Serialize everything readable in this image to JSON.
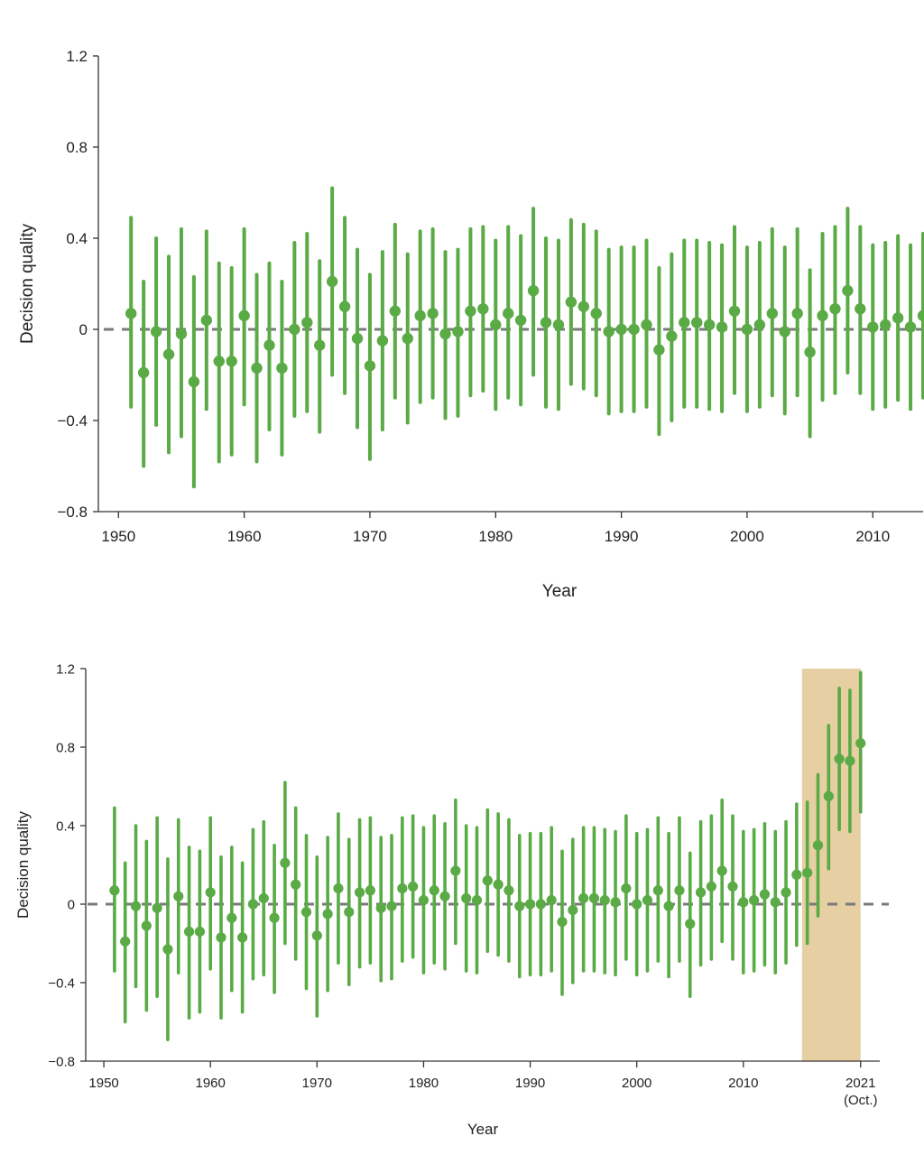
{
  "colors": {
    "series": "#5aaa46",
    "zero_line": "#7a7a7a",
    "highlight": "#e6cfa3",
    "axis": "#333333"
  },
  "chart_data": [
    {
      "type": "scatter",
      "ylabel": "Decision quality",
      "xlabel": "Year",
      "x_ticks": [
        1950,
        1960,
        1970,
        1980,
        1990,
        2000,
        2010
      ],
      "x_tick_labels": [
        "1950",
        "1960",
        "1970",
        "1980",
        "1990",
        "2000",
        "2010"
      ],
      "y_ticks": [
        1.2,
        0.8,
        0.4,
        0,
        -0.4,
        -0.8
      ],
      "y_tick_labels": [
        "1.2",
        "0.8",
        "0.4",
        "0",
        "−0.4",
        "−0.8"
      ],
      "ylim": [
        -0.8,
        1.2
      ],
      "xlim": [
        1948.4,
        2014
      ],
      "zero_line": 0,
      "series": [
        {
          "name": "Decision quality",
          "x": [
            1951,
            1952,
            1953,
            1954,
            1955,
            1956,
            1957,
            1958,
            1959,
            1960,
            1961,
            1962,
            1963,
            1964,
            1965,
            1966,
            1967,
            1968,
            1969,
            1970,
            1971,
            1972,
            1973,
            1974,
            1975,
            1976,
            1977,
            1978,
            1979,
            1980,
            1981,
            1982,
            1983,
            1984,
            1985,
            1986,
            1987,
            1988,
            1989,
            1990,
            1991,
            1992,
            1993,
            1994,
            1995,
            1996,
            1997,
            1998,
            1999,
            2000,
            2001,
            2002,
            2003,
            2004,
            2005,
            2006,
            2007,
            2008,
            2009,
            2010,
            2011,
            2012,
            2013,
            2014
          ],
          "values": [
            0.07,
            -0.19,
            -0.01,
            -0.11,
            -0.02,
            -0.23,
            0.04,
            -0.14,
            -0.14,
            0.06,
            -0.17,
            -0.07,
            -0.17,
            0.0,
            0.03,
            -0.07,
            0.21,
            0.1,
            -0.04,
            -0.16,
            -0.05,
            0.08,
            -0.04,
            0.06,
            0.07,
            -0.02,
            -0.01,
            0.08,
            0.09,
            0.02,
            0.07,
            0.04,
            0.17,
            0.03,
            0.02,
            0.12,
            0.1,
            0.07,
            -0.01,
            0.0,
            0.0,
            0.02,
            -0.09,
            -0.03,
            0.03,
            0.03,
            0.02,
            0.01,
            0.08,
            0.0,
            0.02,
            0.07,
            -0.01,
            0.07,
            -0.1,
            0.06,
            0.09,
            0.17,
            0.09,
            0.01,
            0.02,
            0.05,
            0.01,
            0.06
          ],
          "lower": [
            -0.34,
            -0.6,
            -0.42,
            -0.54,
            -0.47,
            -0.69,
            -0.35,
            -0.58,
            -0.55,
            -0.33,
            -0.58,
            -0.44,
            -0.55,
            -0.38,
            -0.36,
            -0.45,
            -0.2,
            -0.28,
            -0.43,
            -0.57,
            -0.44,
            -0.3,
            -0.41,
            -0.32,
            -0.3,
            -0.39,
            -0.38,
            -0.29,
            -0.27,
            -0.35,
            -0.3,
            -0.33,
            -0.2,
            -0.34,
            -0.35,
            -0.24,
            -0.26,
            -0.29,
            -0.37,
            -0.36,
            -0.36,
            -0.34,
            -0.46,
            -0.4,
            -0.34,
            -0.34,
            -0.35,
            -0.36,
            -0.28,
            -0.36,
            -0.34,
            -0.29,
            -0.37,
            -0.29,
            -0.47,
            -0.31,
            -0.28,
            -0.19,
            -0.28,
            -0.35,
            -0.34,
            -0.31,
            -0.35,
            -0.3
          ],
          "upper": [
            0.49,
            0.21,
            0.4,
            0.32,
            0.44,
            0.23,
            0.43,
            0.29,
            0.27,
            0.44,
            0.24,
            0.29,
            0.21,
            0.38,
            0.42,
            0.3,
            0.62,
            0.49,
            0.35,
            0.24,
            0.34,
            0.46,
            0.33,
            0.43,
            0.44,
            0.34,
            0.35,
            0.44,
            0.45,
            0.39,
            0.45,
            0.41,
            0.53,
            0.4,
            0.39,
            0.48,
            0.46,
            0.43,
            0.35,
            0.36,
            0.36,
            0.39,
            0.27,
            0.33,
            0.39,
            0.39,
            0.38,
            0.37,
            0.45,
            0.36,
            0.38,
            0.44,
            0.36,
            0.44,
            0.26,
            0.42,
            0.45,
            0.53,
            0.45,
            0.37,
            0.38,
            0.41,
            0.37,
            0.42
          ]
        }
      ]
    },
    {
      "type": "scatter",
      "ylabel": "Decision quality",
      "xlabel": "Year",
      "x_ticks": [
        1950,
        1960,
        1970,
        1980,
        1990,
        2000,
        2010,
        2021
      ],
      "x_tick_labels": [
        "1950",
        "1960",
        "1970",
        "1980",
        "1990",
        "2000",
        "2010",
        "2021"
      ],
      "x_tick_sublabel": "(Oct.)",
      "y_ticks": [
        1.2,
        0.8,
        0.4,
        0,
        -0.4,
        -0.8
      ],
      "y_tick_labels": [
        "1.2",
        "0.8",
        "0.4",
        "0",
        "−0.4",
        "−0.8"
      ],
      "ylim": [
        -0.8,
        1.2
      ],
      "xlim": [
        1948.3,
        2022.8
      ],
      "zero_line": 0,
      "highlight_range": [
        2015.5,
        2021
      ],
      "series": [
        {
          "name": "Decision quality",
          "x": [
            1951,
            1952,
            1953,
            1954,
            1955,
            1956,
            1957,
            1958,
            1959,
            1960,
            1961,
            1962,
            1963,
            1964,
            1965,
            1966,
            1967,
            1968,
            1969,
            1970,
            1971,
            1972,
            1973,
            1974,
            1975,
            1976,
            1977,
            1978,
            1979,
            1980,
            1981,
            1982,
            1983,
            1984,
            1985,
            1986,
            1987,
            1988,
            1989,
            1990,
            1991,
            1992,
            1993,
            1994,
            1995,
            1996,
            1997,
            1998,
            1999,
            2000,
            2001,
            2002,
            2003,
            2004,
            2005,
            2006,
            2007,
            2008,
            2009,
            2010,
            2011,
            2012,
            2013,
            2014,
            2015,
            2016,
            2017,
            2018,
            2019,
            2020,
            2021
          ],
          "values": [
            0.07,
            -0.19,
            -0.01,
            -0.11,
            -0.02,
            -0.23,
            0.04,
            -0.14,
            -0.14,
            0.06,
            -0.17,
            -0.07,
            -0.17,
            0.0,
            0.03,
            -0.07,
            0.21,
            0.1,
            -0.04,
            -0.16,
            -0.05,
            0.08,
            -0.04,
            0.06,
            0.07,
            -0.02,
            -0.01,
            0.08,
            0.09,
            0.02,
            0.07,
            0.04,
            0.17,
            0.03,
            0.02,
            0.12,
            0.1,
            0.07,
            -0.01,
            0.0,
            0.0,
            0.02,
            -0.09,
            -0.03,
            0.03,
            0.03,
            0.02,
            0.01,
            0.08,
            0.0,
            0.02,
            0.07,
            -0.01,
            0.07,
            -0.1,
            0.06,
            0.09,
            0.17,
            0.09,
            0.01,
            0.02,
            0.05,
            0.01,
            0.06,
            0.15,
            0.16,
            0.3,
            0.55,
            0.74,
            0.73,
            0.82
          ],
          "lower": [
            -0.34,
            -0.6,
            -0.42,
            -0.54,
            -0.47,
            -0.69,
            -0.35,
            -0.58,
            -0.55,
            -0.33,
            -0.58,
            -0.44,
            -0.55,
            -0.38,
            -0.36,
            -0.45,
            -0.2,
            -0.28,
            -0.43,
            -0.57,
            -0.44,
            -0.3,
            -0.41,
            -0.32,
            -0.3,
            -0.39,
            -0.38,
            -0.29,
            -0.27,
            -0.35,
            -0.3,
            -0.33,
            -0.2,
            -0.34,
            -0.35,
            -0.24,
            -0.26,
            -0.29,
            -0.37,
            -0.36,
            -0.36,
            -0.34,
            -0.46,
            -0.4,
            -0.34,
            -0.34,
            -0.35,
            -0.36,
            -0.28,
            -0.36,
            -0.34,
            -0.29,
            -0.37,
            -0.29,
            -0.47,
            -0.31,
            -0.28,
            -0.19,
            -0.28,
            -0.35,
            -0.34,
            -0.31,
            -0.35,
            -0.3,
            -0.21,
            -0.2,
            -0.06,
            0.18,
            0.38,
            0.37,
            0.47
          ],
          "upper": [
            0.49,
            0.21,
            0.4,
            0.32,
            0.44,
            0.23,
            0.43,
            0.29,
            0.27,
            0.44,
            0.24,
            0.29,
            0.21,
            0.38,
            0.42,
            0.3,
            0.62,
            0.49,
            0.35,
            0.24,
            0.34,
            0.46,
            0.33,
            0.43,
            0.44,
            0.34,
            0.35,
            0.44,
            0.45,
            0.39,
            0.45,
            0.41,
            0.53,
            0.4,
            0.39,
            0.48,
            0.46,
            0.43,
            0.35,
            0.36,
            0.36,
            0.39,
            0.27,
            0.33,
            0.39,
            0.39,
            0.38,
            0.37,
            0.45,
            0.36,
            0.38,
            0.44,
            0.36,
            0.44,
            0.26,
            0.42,
            0.45,
            0.53,
            0.45,
            0.37,
            0.38,
            0.41,
            0.37,
            0.42,
            0.51,
            0.52,
            0.66,
            0.91,
            1.1,
            1.09,
            1.18
          ]
        }
      ]
    }
  ]
}
